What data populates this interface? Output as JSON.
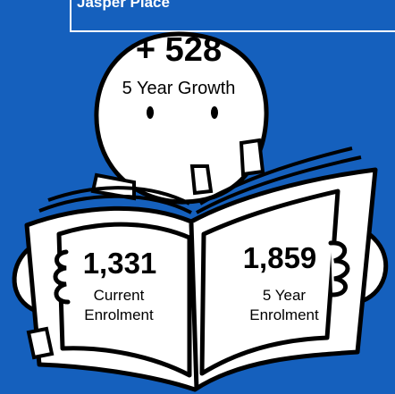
{
  "header": {
    "title": "Jasper Place"
  },
  "growth": {
    "value": "+ 528",
    "label": "5 Year Growth"
  },
  "current": {
    "value": "1,331",
    "label_line1": "Current",
    "label_line2": "Enrolment"
  },
  "future": {
    "value": "1,859",
    "label_line1": "5 Year",
    "label_line2": "Enrolment"
  },
  "colors": {
    "background": "#1560bd",
    "figure_fill": "#ffffff",
    "outline": "#000000"
  }
}
